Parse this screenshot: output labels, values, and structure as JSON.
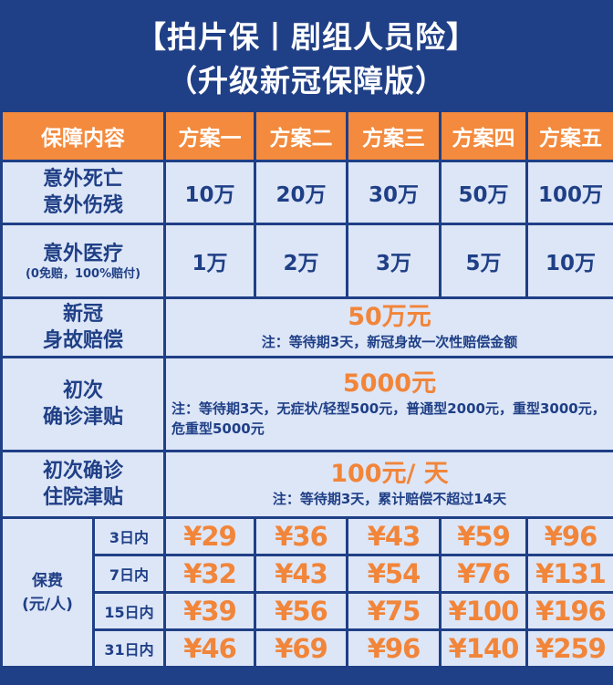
{
  "title": {
    "line1": "【拍片保丨剧组人员险】",
    "line2": "（升级新冠保障版）"
  },
  "header": {
    "label": "保障内容",
    "plans": [
      "方案一",
      "方案二",
      "方案三",
      "方案四",
      "方案五"
    ]
  },
  "rows": {
    "death": {
      "label_line1": "意外死亡",
      "label_line2": "意外伤残",
      "values": [
        "10万",
        "20万",
        "30万",
        "50万",
        "100万"
      ]
    },
    "medical": {
      "label_line1": "意外医疗",
      "label_sub": "(0免赔，100%赔付)",
      "values": [
        "1万",
        "2万",
        "3万",
        "5万",
        "10万"
      ]
    },
    "covid_death": {
      "label_line1": "新冠",
      "label_line2": "身故赔偿",
      "amount": "50万元",
      "note": "注：等待期3天，新冠身故一次性赔偿金额"
    },
    "first_diag": {
      "label_line1": "初次",
      "label_line2": "确诊津贴",
      "amount": "5000元",
      "note": "注：等待期3天，无症状/轻型500元，普通型2000元，重型3000元，危重型5000元"
    },
    "hospital": {
      "label_line1": "初次确诊",
      "label_line2": "住院津贴",
      "amount": "100元/ 天",
      "note": "注：等待期3天，累计赔偿不超过14天"
    }
  },
  "premium": {
    "label_line1": "保费",
    "label_line2": "(元/人)",
    "rows": [
      {
        "days": "3日内",
        "prices": [
          "¥29",
          "¥36",
          "¥43",
          "¥59",
          "¥96"
        ]
      },
      {
        "days": "7日内",
        "prices": [
          "¥32",
          "¥43",
          "¥54",
          "¥76",
          "¥131"
        ]
      },
      {
        "days": "15日内",
        "prices": [
          "¥39",
          "¥56",
          "¥75",
          "¥100",
          "¥196"
        ]
      },
      {
        "days": "31日内",
        "prices": [
          "¥46",
          "¥69",
          "¥96",
          "¥140",
          "¥259"
        ]
      }
    ]
  },
  "colors": {
    "navy": "#1f3f86",
    "orange": "#f38a3d",
    "cell_bg": "#dde6f7"
  }
}
